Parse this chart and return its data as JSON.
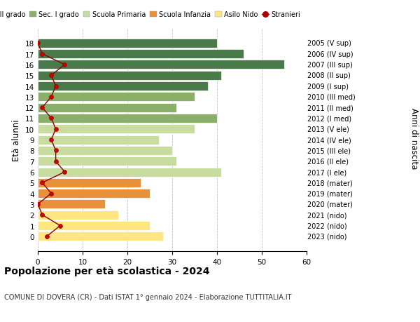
{
  "ages": [
    0,
    1,
    2,
    3,
    4,
    5,
    6,
    7,
    8,
    9,
    10,
    11,
    12,
    13,
    14,
    15,
    16,
    17,
    18
  ],
  "right_labels": [
    "2023 (nido)",
    "2022 (nido)",
    "2021 (nido)",
    "2020 (mater)",
    "2019 (mater)",
    "2018 (mater)",
    "2017 (I ele)",
    "2016 (II ele)",
    "2015 (III ele)",
    "2014 (IV ele)",
    "2013 (V ele)",
    "2012 (I med)",
    "2011 (II med)",
    "2010 (III med)",
    "2009 (I sup)",
    "2008 (II sup)",
    "2007 (III sup)",
    "2006 (IV sup)",
    "2005 (V sup)"
  ],
  "bar_values": [
    28,
    25,
    18,
    15,
    25,
    23,
    41,
    31,
    30,
    27,
    35,
    40,
    31,
    35,
    38,
    41,
    55,
    46,
    40
  ],
  "bar_colors": [
    "#FFE680",
    "#FFE680",
    "#FFE680",
    "#E8913A",
    "#E8913A",
    "#E8913A",
    "#C8DCA0",
    "#C8DCA0",
    "#C8DCA0",
    "#C8DCA0",
    "#C8DCA0",
    "#8AAF6A",
    "#8AAF6A",
    "#8AAF6A",
    "#4A7A4A",
    "#4A7A4A",
    "#4A7A4A",
    "#4A7A4A",
    "#4A7A4A"
  ],
  "stranieri_values": [
    2,
    5,
    1,
    0,
    3,
    1,
    6,
    4,
    4,
    3,
    4,
    3,
    1,
    3,
    4,
    3,
    6,
    1,
    0
  ],
  "title_bold": "Popolazione per età scolastica - 2024",
  "subtitle": "COMUNE DI DOVERA (CR) - Dati ISTAT 1° gennaio 2024 - Elaborazione TUTTITALIA.IT",
  "ylabel": "Età alunni",
  "right_ylabel": "Anni di nascita",
  "xlim": [
    0,
    60
  ],
  "xticks": [
    0,
    10,
    20,
    30,
    40,
    50,
    60
  ],
  "legend_items": [
    {
      "label": "Sec. II grado",
      "color": "#4A7A4A"
    },
    {
      "label": "Sec. I grado",
      "color": "#8AAF6A"
    },
    {
      "label": "Scuola Primaria",
      "color": "#C8DCA0"
    },
    {
      "label": "Scuola Infanzia",
      "color": "#E8913A"
    },
    {
      "label": "Asilo Nido",
      "color": "#FFE680"
    },
    {
      "label": "Stranieri",
      "color": "#AA0000"
    }
  ],
  "bg_color": "#FFFFFF",
  "grid_color": "#BBBBBB"
}
